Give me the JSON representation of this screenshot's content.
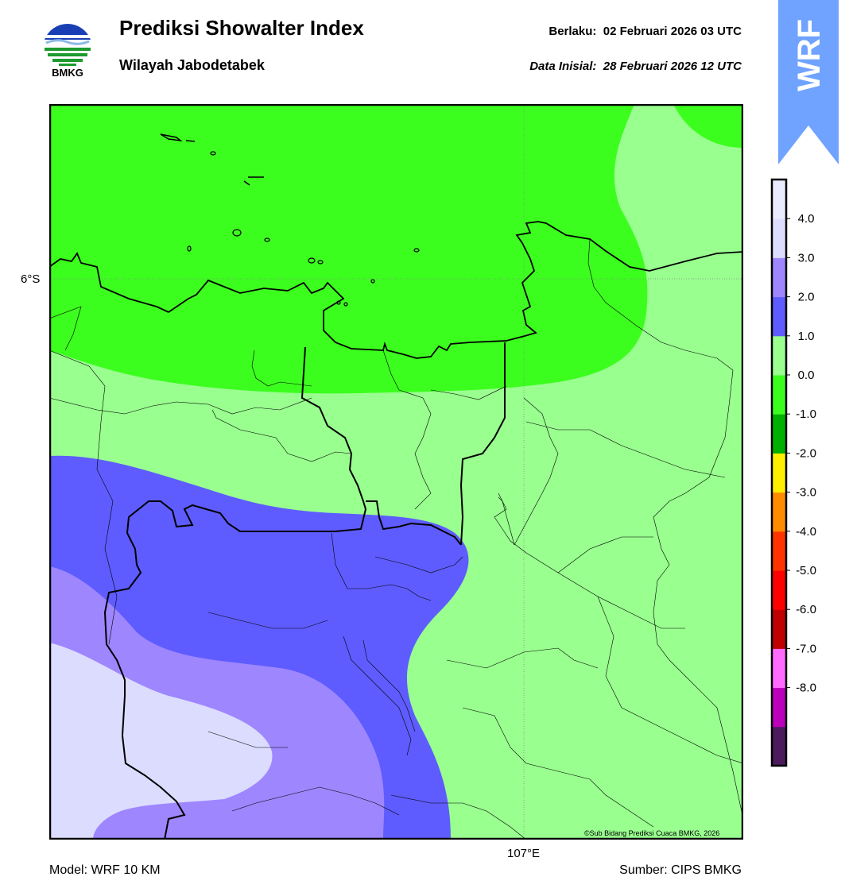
{
  "header": {
    "logo_text": "BMKG",
    "title": "Prediksi Showalter Index",
    "subtitle": "Wilayah Jabodetabek",
    "valid_label": "Berlaku:",
    "valid_value": "02 Februari 2026 03 UTC",
    "init_label": "Data Inisial:",
    "init_value": "28 Februari 2026 12 UTC"
  },
  "badge": {
    "text": "WRF",
    "color": "#6fa3ff"
  },
  "map": {
    "lat_label": "6°S",
    "lon_label": "107°E",
    "credit": "©Sub Bidang Prediksi Cuaca BMKG, 2026"
  },
  "footer": {
    "model": "Model: WRF 10 KM",
    "source": "Sumber: CIPS BMKG"
  },
  "colorbar": {
    "colors": [
      "#4b1b5e",
      "#bb00bb",
      "#ff6bff",
      "#c00000",
      "#ff0000",
      "#ff3300",
      "#ff8c00",
      "#ffee00",
      "#00b000",
      "#3cfe1e",
      "#99ff8f",
      "#5e5cff",
      "#9e86ff",
      "#dcdcff",
      "#ebebff"
    ],
    "ticks": [
      "4.0",
      "3.0",
      "2.0",
      "1.0",
      "0.0",
      "-1.0",
      "-2.0",
      "-3.0",
      "-4.0",
      "-5.0",
      "-6.0",
      "-7.0",
      "-8.0"
    ]
  }
}
